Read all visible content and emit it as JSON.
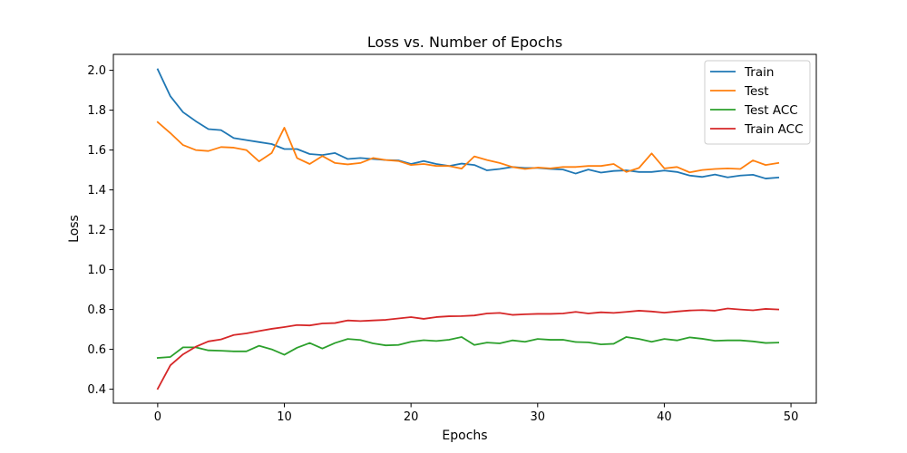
{
  "chart_data": {
    "type": "line",
    "title": "Loss vs. Number of Epochs",
    "xlabel": "Epochs",
    "ylabel": "Loss",
    "xlim": [
      -3.5,
      52
    ],
    "ylim": [
      0.33,
      2.08
    ],
    "xticks": [
      0,
      10,
      20,
      30,
      40,
      50
    ],
    "yticks": [
      0.4,
      0.6,
      0.8,
      1.0,
      1.2,
      1.4,
      1.6,
      1.8,
      2.0
    ],
    "xtick_labels": [
      "0",
      "10",
      "20",
      "30",
      "40",
      "50"
    ],
    "ytick_labels": [
      "0.4",
      "0.6",
      "0.8",
      "1.0",
      "1.2",
      "1.4",
      "1.6",
      "1.8",
      "2.0"
    ],
    "grid": false,
    "legend_position": "top-right",
    "x": [
      0,
      1,
      2,
      3,
      4,
      5,
      6,
      7,
      8,
      9,
      10,
      11,
      12,
      13,
      14,
      15,
      16,
      17,
      18,
      19,
      20,
      21,
      22,
      23,
      24,
      25,
      26,
      27,
      28,
      29,
      30,
      31,
      32,
      33,
      34,
      35,
      36,
      37,
      38,
      39,
      40,
      41,
      42,
      43,
      44,
      45,
      46,
      47,
      48,
      49
    ],
    "series": [
      {
        "name": "Train",
        "color": "#1f77b4",
        "values": [
          2.005,
          1.87,
          1.79,
          1.745,
          1.705,
          1.7,
          1.66,
          1.65,
          1.64,
          1.63,
          1.605,
          1.605,
          1.58,
          1.575,
          1.585,
          1.555,
          1.56,
          1.555,
          1.55,
          1.548,
          1.53,
          1.545,
          1.53,
          1.52,
          1.532,
          1.525,
          1.498,
          1.505,
          1.515,
          1.51,
          1.51,
          1.505,
          1.502,
          1.482,
          1.502,
          1.487,
          1.495,
          1.498,
          1.49,
          1.49,
          1.497,
          1.49,
          1.472,
          1.465,
          1.477,
          1.463,
          1.472,
          1.476,
          1.457,
          1.462
        ]
      },
      {
        "name": "Test",
        "color": "#ff7f0e",
        "values": [
          1.74,
          1.685,
          1.625,
          1.6,
          1.595,
          1.615,
          1.612,
          1.6,
          1.543,
          1.585,
          1.712,
          1.56,
          1.53,
          1.57,
          1.535,
          1.528,
          1.535,
          1.56,
          1.55,
          1.545,
          1.525,
          1.53,
          1.52,
          1.52,
          1.507,
          1.568,
          1.55,
          1.535,
          1.515,
          1.505,
          1.512,
          1.508,
          1.515,
          1.515,
          1.52,
          1.52,
          1.53,
          1.49,
          1.51,
          1.583,
          1.508,
          1.515,
          1.488,
          1.5,
          1.505,
          1.508,
          1.505,
          1.548,
          1.525,
          1.535
        ]
      },
      {
        "name": "Test ACC",
        "color": "#2ca02c",
        "values": [
          0.557,
          0.562,
          0.61,
          0.61,
          0.595,
          0.593,
          0.59,
          0.59,
          0.618,
          0.6,
          0.573,
          0.608,
          0.632,
          0.604,
          0.632,
          0.652,
          0.647,
          0.63,
          0.62,
          0.622,
          0.638,
          0.646,
          0.642,
          0.648,
          0.662,
          0.622,
          0.634,
          0.63,
          0.645,
          0.638,
          0.652,
          0.648,
          0.648,
          0.637,
          0.635,
          0.625,
          0.628,
          0.662,
          0.652,
          0.638,
          0.652,
          0.645,
          0.66,
          0.653,
          0.643,
          0.645,
          0.645,
          0.64,
          0.632,
          0.634
        ]
      },
      {
        "name": "Train ACC",
        "color": "#d62728",
        "values": [
          0.402,
          0.52,
          0.575,
          0.613,
          0.64,
          0.65,
          0.672,
          0.68,
          0.692,
          0.703,
          0.712,
          0.722,
          0.72,
          0.73,
          0.732,
          0.745,
          0.742,
          0.745,
          0.748,
          0.755,
          0.762,
          0.753,
          0.762,
          0.766,
          0.767,
          0.77,
          0.78,
          0.783,
          0.773,
          0.776,
          0.778,
          0.778,
          0.78,
          0.788,
          0.78,
          0.786,
          0.783,
          0.788,
          0.794,
          0.79,
          0.784,
          0.79,
          0.795,
          0.797,
          0.794,
          0.805,
          0.8,
          0.796,
          0.803,
          0.8
        ]
      }
    ]
  }
}
